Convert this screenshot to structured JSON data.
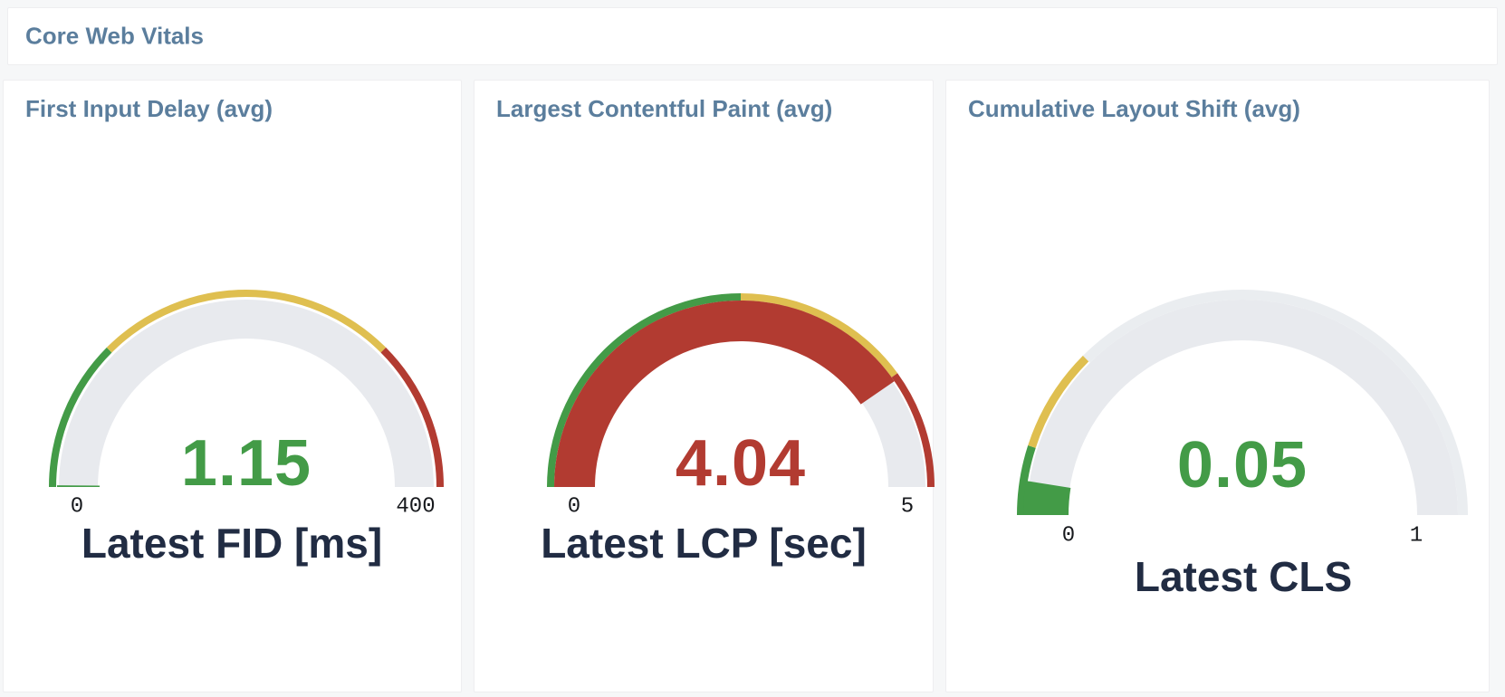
{
  "header": {
    "title": "Core Web Vitals"
  },
  "colors": {
    "green": "#439b47",
    "yellow": "#dfbf50",
    "red": "#b23b31",
    "track": "#e8eaee",
    "track_faint": "#eaedf0",
    "title_text": "#5b7e9d",
    "metric_label_text": "#212c43",
    "tick_text": "#17191d",
    "page_bg": "#f6f7f8",
    "card_bg": "#ffffff"
  },
  "chart_data": [
    {
      "type": "gauge",
      "title": "First Input Delay (avg)",
      "metric_label": "Latest FID [ms]",
      "value": 1.15,
      "value_text": "1.15",
      "value_status": "green",
      "min": 0,
      "max": 400,
      "tick_labels": [
        "0",
        "400"
      ],
      "thresholds": [
        {
          "from": 0,
          "to": 100,
          "color": "green"
        },
        {
          "from": 100,
          "to": 300,
          "color": "yellow"
        },
        {
          "from": 300,
          "to": 400,
          "color": "red"
        }
      ]
    },
    {
      "type": "gauge",
      "title": "Largest Contentful Paint (avg)",
      "metric_label": "Latest LCP [sec]",
      "value": 4.04,
      "value_text": "4.04",
      "value_status": "red",
      "min": 0,
      "max": 5,
      "tick_labels": [
        "0",
        "5"
      ],
      "thresholds": [
        {
          "from": 0,
          "to": 2.5,
          "color": "green"
        },
        {
          "from": 2.5,
          "to": 4,
          "color": "yellow"
        },
        {
          "from": 4,
          "to": 5,
          "color": "red"
        }
      ]
    },
    {
      "type": "gauge",
      "title": "Cumulative Layout Shift (avg)",
      "metric_label": "Latest CLS",
      "value": 0.05,
      "value_text": "0.05",
      "value_status": "green",
      "min": 0,
      "max": 1,
      "tick_labels": [
        "0",
        "1"
      ],
      "thresholds": [
        {
          "from": 0,
          "to": 0.1,
          "color": "green"
        },
        {
          "from": 0.1,
          "to": 0.25,
          "color": "yellow"
        },
        {
          "from": 0.25,
          "to": 1,
          "color": "track_faint"
        }
      ]
    }
  ]
}
